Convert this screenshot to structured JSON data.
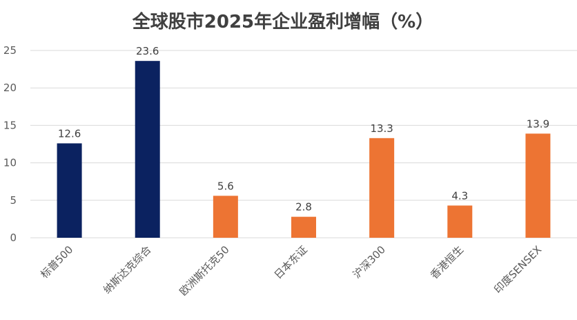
{
  "chart_data": {
    "type": "bar",
    "title": "全球股市2025年企业盈利增幅（%）",
    "categories": [
      "标普500",
      "纳斯达克综合",
      "欧洲斯托克50",
      "日本东证",
      "沪深300",
      "香港恒生",
      "印度SENSEX"
    ],
    "values": [
      12.6,
      23.6,
      5.6,
      2.8,
      13.3,
      4.3,
      13.9
    ],
    "bar_colors": [
      "#0b2260",
      "#0b2260",
      "#ed7433",
      "#ed7433",
      "#ed7433",
      "#ed7433",
      "#ed7433"
    ],
    "ylim": [
      0,
      25
    ],
    "yticks": [
      0,
      5,
      10,
      15,
      20,
      25
    ],
    "grid": true,
    "data_labels": true,
    "xlabel": "",
    "ylabel": ""
  }
}
